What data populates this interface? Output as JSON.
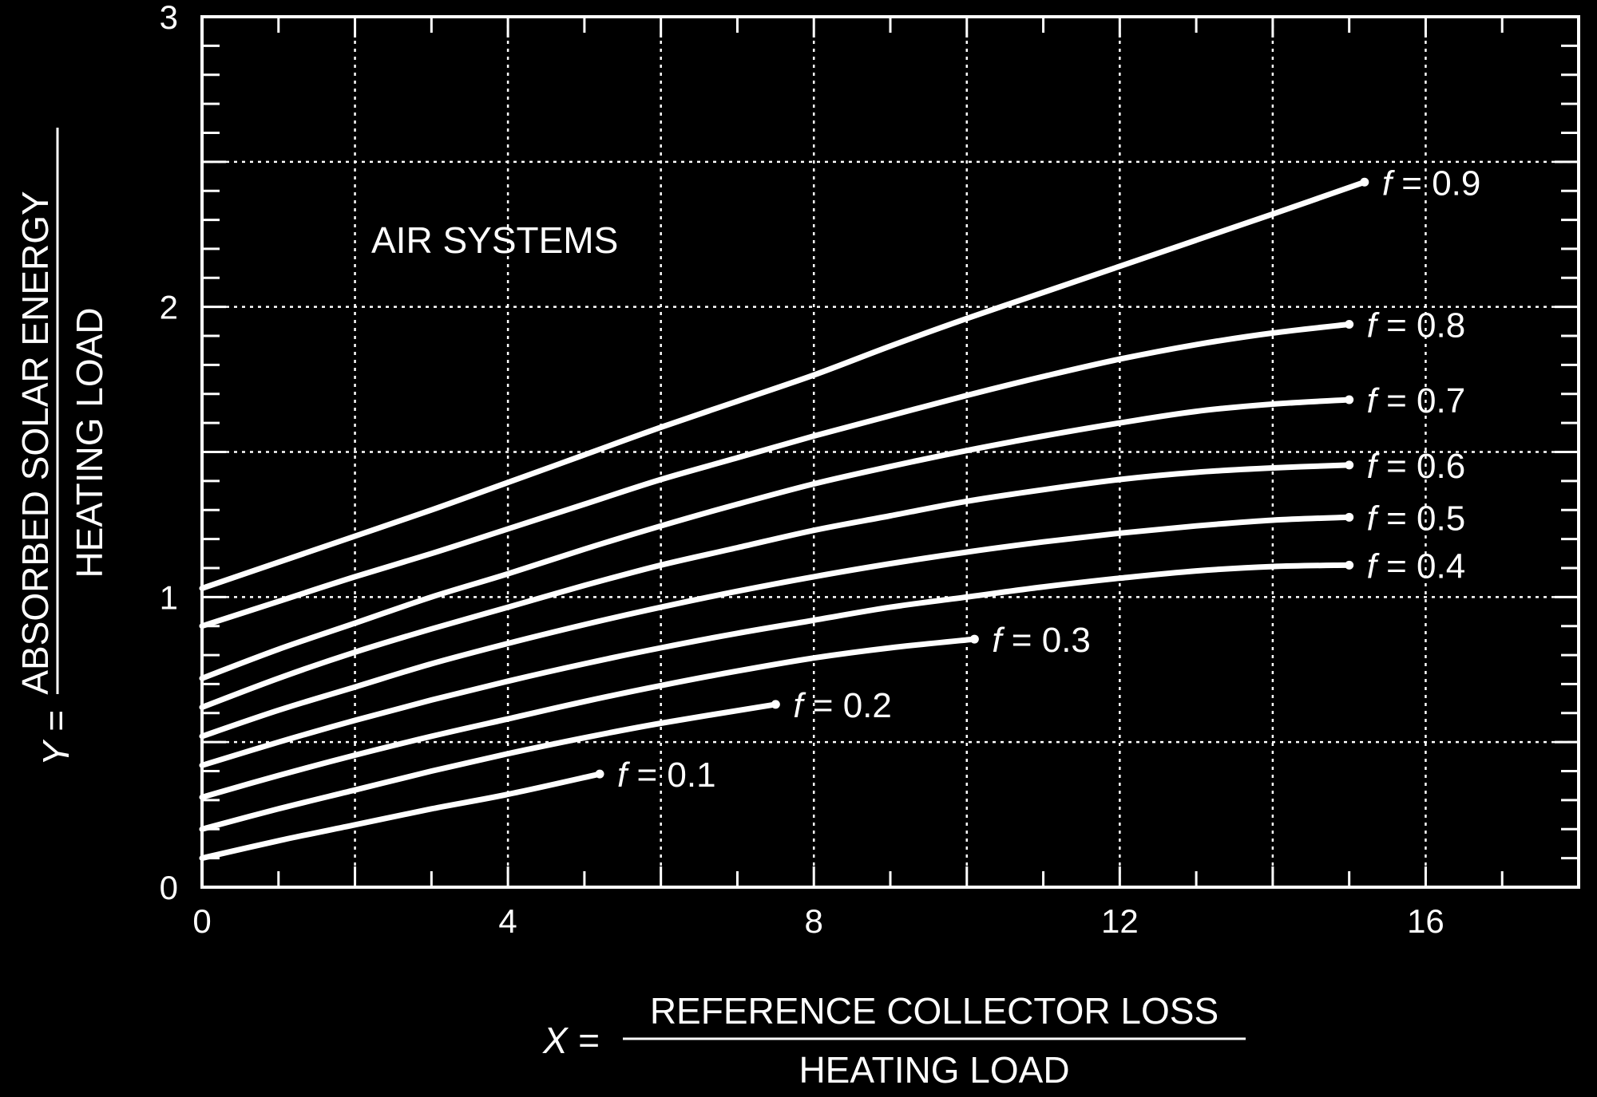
{
  "chart_data": {
    "type": "line",
    "annotation": "AIR SYSTEMS",
    "xlabel": {
      "prefix": "X =",
      "numerator": "REFERENCE COLLECTOR LOSS",
      "denominator": "HEATING LOAD"
    },
    "ylabel": {
      "prefix": "Y =",
      "numerator": "ABSORBED SOLAR ENERGY",
      "denominator": "HEATING LOAD"
    },
    "xlim": [
      0,
      18
    ],
    "ylim": [
      0,
      3
    ],
    "x_ticks": [
      "0",
      "4",
      "8",
      "12",
      "16"
    ],
    "x_tick_values": [
      0,
      4,
      8,
      12,
      16
    ],
    "y_ticks": [
      "0",
      "1",
      "2",
      "3"
    ],
    "y_tick_values": [
      0,
      1,
      2,
      3
    ],
    "grid": true,
    "colors": {
      "background": "#000000",
      "foreground": "#ffffff"
    },
    "series": [
      {
        "name": "f = 0.1",
        "x": [
          0,
          1,
          2,
          3,
          4,
          5.2
        ],
        "y": [
          0.1,
          0.16,
          0.215,
          0.27,
          0.32,
          0.39
        ]
      },
      {
        "name": "f = 0.2",
        "x": [
          0,
          1,
          2,
          3,
          4,
          5,
          6,
          7.5
        ],
        "y": [
          0.2,
          0.27,
          0.335,
          0.4,
          0.46,
          0.515,
          0.565,
          0.63
        ]
      },
      {
        "name": "f = 0.3",
        "x": [
          0,
          1,
          2,
          3,
          4,
          5,
          6,
          7,
          8,
          9,
          10.1
        ],
        "y": [
          0.31,
          0.385,
          0.455,
          0.52,
          0.58,
          0.64,
          0.695,
          0.745,
          0.79,
          0.825,
          0.855
        ]
      },
      {
        "name": "f = 0.4",
        "x": [
          0,
          1,
          2,
          3,
          4,
          5,
          6,
          7,
          8,
          9,
          10,
          11,
          12,
          13,
          14,
          15
        ],
        "y": [
          0.42,
          0.5,
          0.575,
          0.645,
          0.71,
          0.77,
          0.825,
          0.875,
          0.92,
          0.965,
          1.0,
          1.035,
          1.065,
          1.09,
          1.105,
          1.11
        ]
      },
      {
        "name": "f = 0.5",
        "x": [
          0,
          1,
          2,
          3,
          4,
          5,
          6,
          7,
          8,
          9,
          10,
          11,
          12,
          13,
          14,
          15
        ],
        "y": [
          0.52,
          0.61,
          0.69,
          0.77,
          0.84,
          0.905,
          0.965,
          1.02,
          1.07,
          1.115,
          1.155,
          1.19,
          1.22,
          1.245,
          1.265,
          1.275
        ]
      },
      {
        "name": "f = 0.6",
        "x": [
          0,
          1,
          2,
          3,
          4,
          5,
          6,
          7,
          8,
          9,
          10,
          11,
          12,
          13,
          14,
          15
        ],
        "y": [
          0.62,
          0.72,
          0.81,
          0.89,
          0.965,
          1.04,
          1.11,
          1.17,
          1.23,
          1.28,
          1.33,
          1.37,
          1.405,
          1.43,
          1.445,
          1.455
        ]
      },
      {
        "name": "f = 0.7",
        "x": [
          0,
          1,
          2,
          3,
          4,
          5,
          6,
          7,
          8,
          9,
          10,
          11,
          12,
          13,
          14,
          15
        ],
        "y": [
          0.72,
          0.82,
          0.91,
          1.0,
          1.08,
          1.165,
          1.245,
          1.32,
          1.39,
          1.45,
          1.505,
          1.555,
          1.6,
          1.64,
          1.665,
          1.68
        ]
      },
      {
        "name": "f = 0.8",
        "x": [
          0,
          1,
          2,
          3,
          4,
          5,
          6,
          7,
          8,
          9,
          10,
          11,
          12,
          13,
          14,
          15
        ],
        "y": [
          0.9,
          0.985,
          1.07,
          1.15,
          1.235,
          1.32,
          1.405,
          1.48,
          1.555,
          1.625,
          1.695,
          1.76,
          1.82,
          1.87,
          1.91,
          1.94
        ]
      },
      {
        "name": "f = 0.9",
        "x": [
          0,
          1,
          2,
          3,
          4,
          5,
          6,
          7,
          8,
          9,
          10,
          11,
          12,
          13,
          14,
          15.2
        ],
        "y": [
          1.03,
          1.12,
          1.21,
          1.3,
          1.395,
          1.49,
          1.585,
          1.675,
          1.765,
          1.865,
          1.96,
          2.05,
          2.14,
          2.23,
          2.32,
          2.43
        ]
      }
    ]
  }
}
